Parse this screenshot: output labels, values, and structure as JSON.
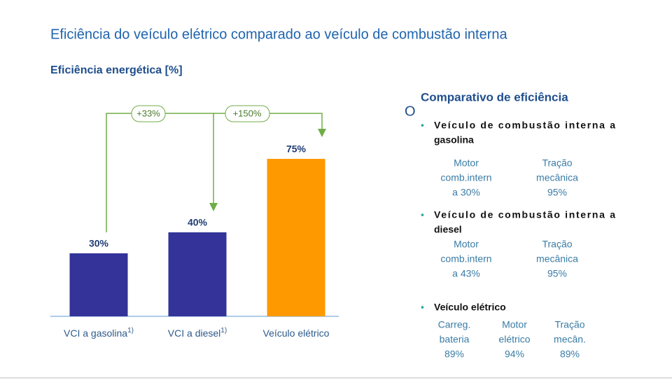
{
  "title": "Eficiência do veículo elétrico comparado ao veículo de combustão interna",
  "chart_data": {
    "type": "bar",
    "title": "Eficiência energética [%]",
    "categories": [
      "VCI a gasolina",
      "VCI a diesel",
      "Veículo elétrico"
    ],
    "category_notes": [
      "1)",
      "1)",
      null
    ],
    "values": [
      30,
      40,
      75
    ],
    "value_labels": [
      "30%",
      "40%",
      "75%"
    ],
    "colors": [
      "#333399",
      "#333399",
      "#ff9900"
    ],
    "annotations": [
      "+33%",
      "+150%"
    ]
  },
  "panel": {
    "marker": "O",
    "heading": "Comparativo de eficiência",
    "items": [
      {
        "label": [
          "Veículo de combustão interna a",
          "gasolina"
        ],
        "components": [
          [
            "Motor",
            "comb.intern",
            "a 30%"
          ],
          [
            "Tração",
            "mecânica",
            "95%"
          ]
        ]
      },
      {
        "label": [
          "Veículo de combustão interna a",
          "diesel"
        ],
        "components": [
          [
            "Motor",
            "comb.intern",
            "a 43%"
          ],
          [
            "Tração",
            "mecânica",
            "95%"
          ]
        ]
      },
      {
        "label": [
          "Veículo elétrico"
        ],
        "components": [
          [
            "Carreg.",
            "bateria",
            "89%"
          ],
          [
            "Motor",
            "elétrico",
            "94%"
          ],
          [
            "Tração",
            "mecân.",
            "89%"
          ]
        ]
      }
    ]
  }
}
